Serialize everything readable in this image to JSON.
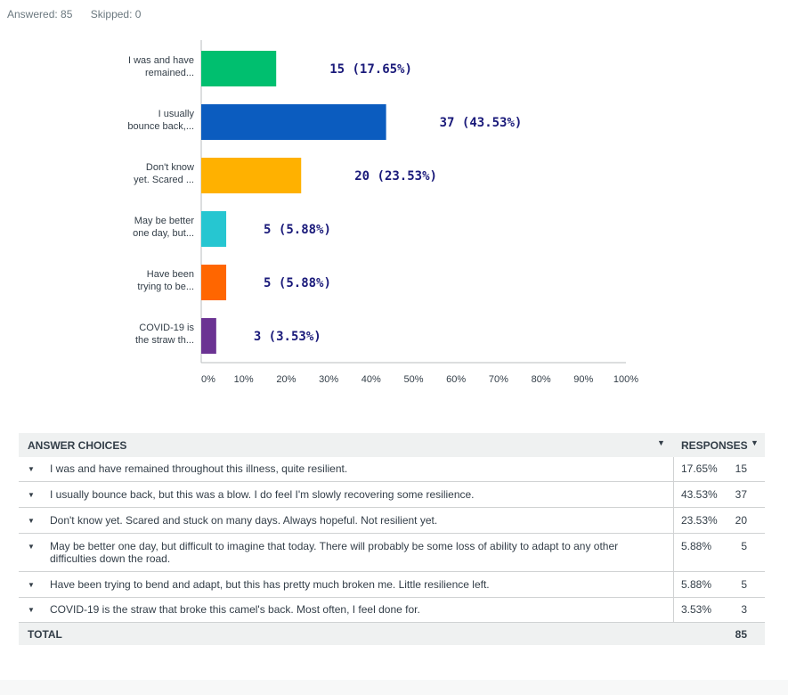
{
  "summary": {
    "answered": "Answered: 85",
    "skipped": "Skipped: 0"
  },
  "chart_data": {
    "type": "bar",
    "orientation": "horizontal",
    "categories": [
      [
        "I was and have",
        "remained..."
      ],
      [
        "I usually",
        "bounce back,..."
      ],
      [
        "Don't know",
        "yet. Scared ..."
      ],
      [
        "May be better",
        "one day, but..."
      ],
      [
        "Have been",
        "trying to be..."
      ],
      [
        "COVID-19 is",
        "the straw th..."
      ]
    ],
    "values": [
      17.65,
      43.53,
      23.53,
      5.88,
      5.88,
      3.53
    ],
    "data_labels": [
      "15 (17.65%)",
      "37  (43.53%)",
      "20  (23.53%)",
      "5  (5.88%)",
      "5  (5.88%)",
      "3 (3.53%)"
    ],
    "colors": [
      "#00bf6f",
      "#0b5cbf",
      "#ffb100",
      "#26c6d1",
      "#ff6600",
      "#6b3393"
    ],
    "xlim": [
      0,
      100
    ],
    "xticks": [
      "0%",
      "10%",
      "20%",
      "30%",
      "40%",
      "50%",
      "60%",
      "70%",
      "80%",
      "90%",
      "100%"
    ],
    "grid": false
  },
  "table": {
    "header_choices": "ANSWER CHOICES",
    "header_responses": "RESPONSES",
    "rows": [
      {
        "text": "I was and have remained throughout this illness, quite resilient.",
        "pct": "17.65%",
        "count": "15"
      },
      {
        "text": "I usually bounce back, but this was a blow. I do feel I'm slowly recovering some resilience.",
        "pct": "43.53%",
        "count": "37"
      },
      {
        "text": "Don't know yet. Scared and stuck on many days. Always hopeful. Not resilient yet.",
        "pct": "23.53%",
        "count": "20"
      },
      {
        "text": "May be better one day, but difficult to imagine that today. There will probably be some loss of ability to adapt to any other difficulties down the road.",
        "pct": "5.88%",
        "count": "5"
      },
      {
        "text": "Have been trying to bend and adapt, but this has pretty much broken me. Little resilience left.",
        "pct": "5.88%",
        "count": "5"
      },
      {
        "text": "COVID-19 is the straw that broke this camel's back. Most often, I feel done for.",
        "pct": "3.53%",
        "count": "3"
      }
    ],
    "total_label": "TOTAL",
    "total_value": "85"
  }
}
